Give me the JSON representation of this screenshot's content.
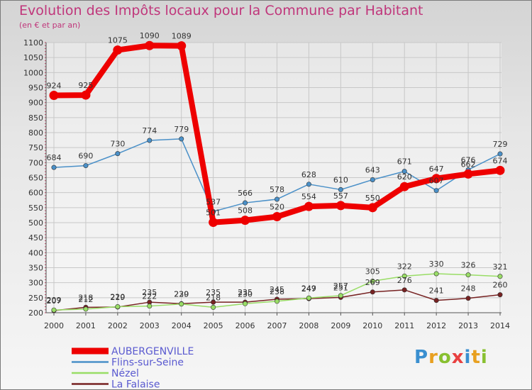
{
  "chart_data": {
    "type": "line",
    "title": "Evolution des Impôts locaux pour la Commune par Habitant",
    "subtitle": "(en € et par an)",
    "x": [
      "2000",
      "2001",
      "2002",
      "2003",
      "2004",
      "2005",
      "2006",
      "2007",
      "2008",
      "2009",
      "2010",
      "2011",
      "2012",
      "2013",
      "2014"
    ],
    "y_ticks": [
      200,
      250,
      300,
      350,
      400,
      450,
      500,
      550,
      600,
      650,
      700,
      750,
      800,
      850,
      900,
      950,
      1000,
      1050,
      1100
    ],
    "ylim": [
      200,
      1100
    ],
    "grid": true,
    "legend_position": "bottom-left",
    "series": [
      {
        "name": "AUBERGENVILLE",
        "color": "#ee0000",
        "values": [
          924,
          925,
          1075,
          1090,
          1089,
          501,
          508,
          520,
          554,
          557,
          550,
          620,
          647,
          662,
          674
        ],
        "labels": [
          "924",
          "925",
          "1075",
          "1090",
          "1089",
          "501",
          "508",
          "520",
          "554",
          "557",
          "550",
          "620",
          "647",
          "662",
          "674"
        ]
      },
      {
        "name": "Flins-sur-Seine",
        "color": "#4a90c8",
        "values": [
          684,
          690,
          730,
          774,
          779,
          537,
          566,
          578,
          628,
          610,
          643,
          671,
          607,
          676,
          729
        ],
        "labels": [
          "684",
          "690",
          "730",
          "774",
          "779",
          "537",
          "566",
          "578",
          "628",
          "610",
          "643",
          "671",
          "607",
          "676",
          "729"
        ]
      },
      {
        "name": "Nézel",
        "color": "#99dd66",
        "values": [
          209,
          212,
          220,
          222,
          229,
          218,
          230,
          238,
          249,
          257,
          305,
          322,
          330,
          326,
          321
        ],
        "labels": [
          "209",
          "212",
          "220",
          "222",
          "229",
          "218",
          "230",
          "238",
          "249",
          "257",
          "305",
          "322",
          "330",
          "326",
          "321"
        ]
      },
      {
        "name": "La Falaise",
        "color": "#772222",
        "values": [
          207,
          218,
          219,
          235,
          230,
          235,
          235,
          245,
          247,
          251,
          269,
          276,
          241,
          248,
          260
        ],
        "labels": [
          "207",
          "218",
          "219",
          "235",
          "230",
          "235",
          "235",
          "245",
          "247",
          "251",
          "269",
          "276",
          "241",
          "248",
          "260"
        ]
      }
    ]
  },
  "logo": {
    "text": "Proxiti",
    "colors": [
      "#3a8fd0",
      "#e8a020",
      "#88c030",
      "#e84040",
      "#3a8fd0",
      "#e8a020",
      "#88c030"
    ]
  }
}
